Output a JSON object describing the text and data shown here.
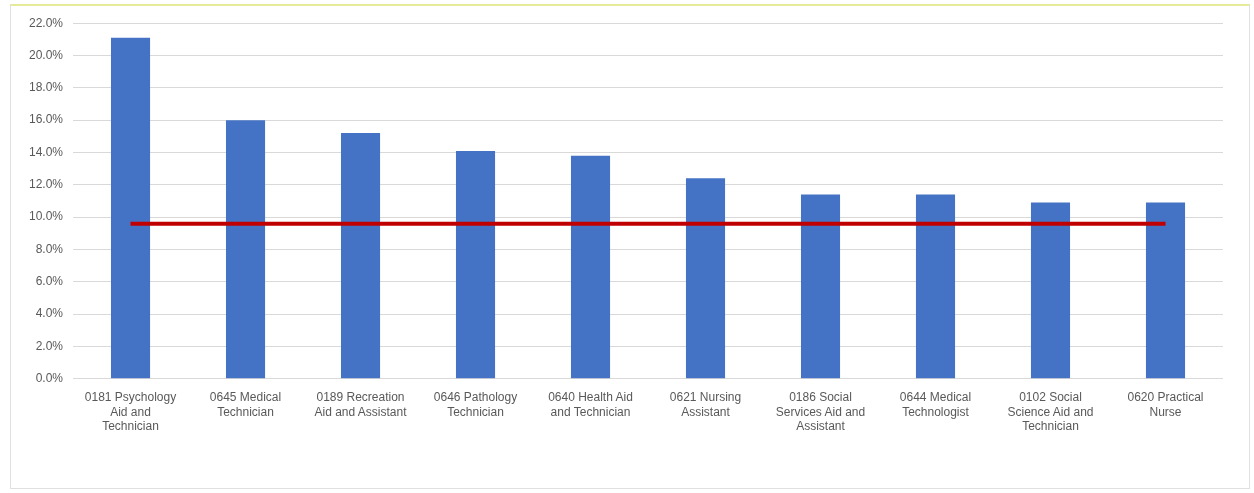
{
  "chart_data": {
    "type": "bar",
    "categories": [
      "0181 Psychology Aid and Technician",
      "0645 Medical Technician",
      "0189 Recreation Aid and Assistant",
      "0646 Pathology Technician",
      "0640 Health Aid and Technician",
      "0621 Nursing Assistant",
      "0186 Social Services Aid and Assistant",
      "0644 Medical Technologist",
      "0102 Social Science Aid and Technician",
      "0620 Practical Nurse"
    ],
    "series": [
      {
        "color": "#4472c4",
        "values": [
          21.1,
          16.0,
          15.2,
          14.1,
          13.8,
          12.4,
          11.4,
          11.4,
          10.9,
          10.9
        ]
      },
      {
        "type": "line",
        "color": "#c00000",
        "values": [
          9.6,
          9.6,
          9.6,
          9.6,
          9.6,
          9.6,
          9.6,
          9.6,
          9.6,
          9.6
        ]
      }
    ],
    "ylim": [
      0,
      22
    ],
    "yticks": [
      {
        "value": 0,
        "label": "0.0%"
      },
      {
        "value": 2,
        "label": "2.0%"
      },
      {
        "value": 4,
        "label": "4.0%"
      },
      {
        "value": 6,
        "label": "6.0%"
      },
      {
        "value": 8,
        "label": "8.0%"
      },
      {
        "value": 10,
        "label": "10.0%"
      },
      {
        "value": 12,
        "label": "12.0%"
      },
      {
        "value": 14,
        "label": "14.0%"
      },
      {
        "value": 16,
        "label": "16.0%"
      },
      {
        "value": 18,
        "label": "18.0%"
      },
      {
        "value": 20,
        "label": "20.0%"
      },
      {
        "value": 22,
        "label": "22.0%"
      }
    ],
    "grid": "y",
    "legend": false,
    "marker": "none",
    "line_style": "solid"
  }
}
